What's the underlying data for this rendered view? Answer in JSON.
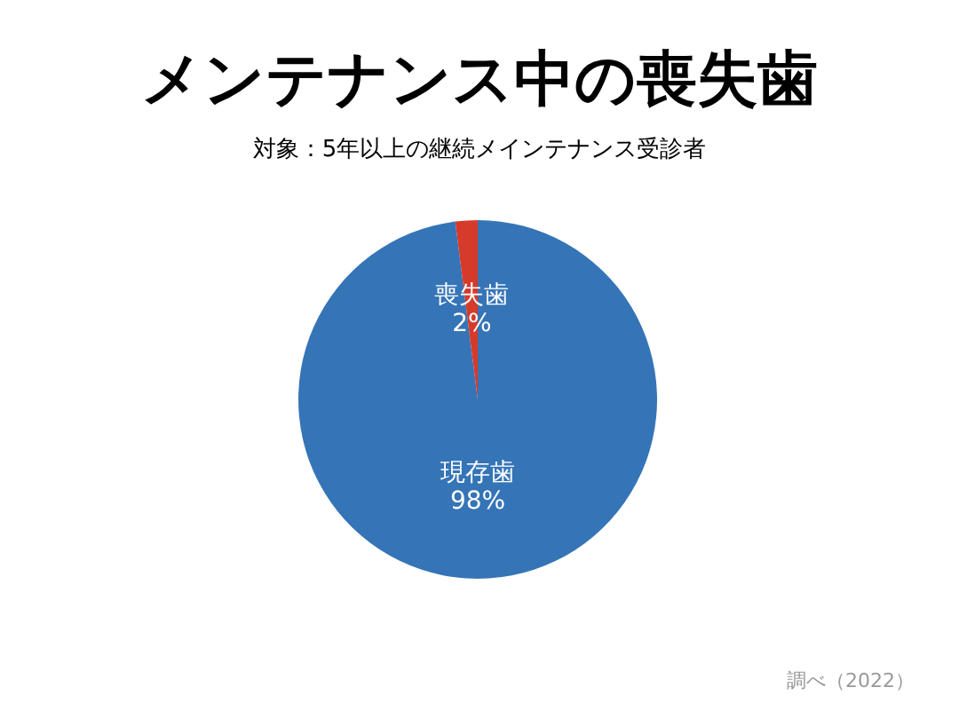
{
  "chart_data": {
    "type": "pie",
    "title": "メンテナンス中の喪失歯",
    "subtitle": "対象：5年以上の継続メインテナンス受診者",
    "categories": [
      "現存歯",
      "喪失歯"
    ],
    "values": [
      98,
      2
    ],
    "colors": [
      "#3574b7",
      "#d63a2a"
    ],
    "value_labels": [
      "98%",
      "2%"
    ],
    "annotations": [
      "調べ（2022）"
    ]
  }
}
